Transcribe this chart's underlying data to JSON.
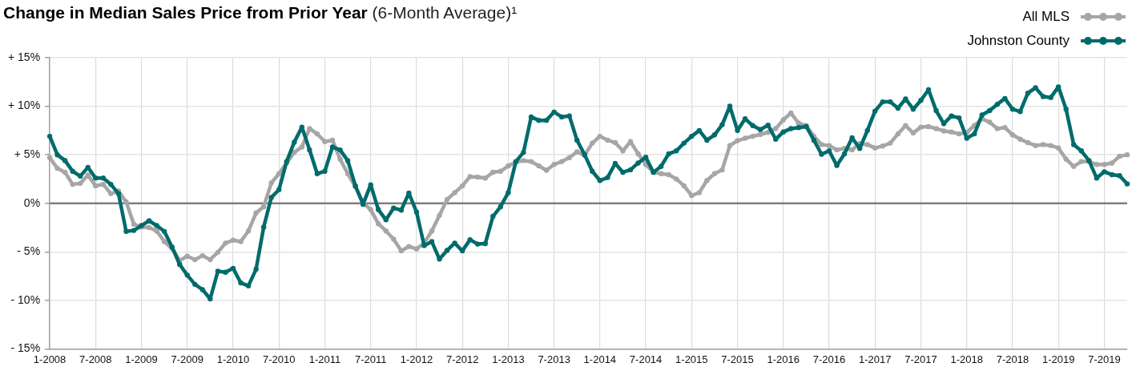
{
  "chart_data": {
    "type": "line",
    "title": "Change in Median Sales Price from Prior Year",
    "subtitle": "(6-Month Average)¹",
    "categories": [
      "1-2008",
      null,
      null,
      null,
      null,
      null,
      "7-2008",
      null,
      null,
      null,
      null,
      null,
      "1-2009",
      null,
      null,
      null,
      null,
      null,
      "7-2009",
      null,
      null,
      null,
      null,
      null,
      "1-2010",
      null,
      null,
      null,
      null,
      null,
      "7-2010",
      null,
      null,
      null,
      null,
      null,
      "1-2011",
      null,
      null,
      null,
      null,
      null,
      "7-2011",
      null,
      null,
      null,
      null,
      null,
      "1-2012",
      null,
      null,
      null,
      null,
      null,
      "7-2012",
      null,
      null,
      null,
      null,
      null,
      "1-2013",
      null,
      null,
      null,
      null,
      null,
      "7-2013",
      null,
      null,
      null,
      null,
      null,
      "1-2014",
      null,
      null,
      null,
      null,
      null,
      "7-2014",
      null,
      null,
      null,
      null,
      null,
      "1-2015",
      null,
      null,
      null,
      null,
      null,
      "7-2015",
      null,
      null,
      null,
      null,
      null,
      "1-2016",
      null,
      null,
      null,
      null,
      null,
      "7-2016",
      null,
      null,
      null,
      null,
      null,
      "1-2017",
      null,
      null,
      null,
      null,
      null,
      "7-2017",
      null,
      null,
      null,
      null,
      null,
      "1-2018",
      null,
      null,
      null,
      null,
      null,
      "7-2018",
      null,
      null,
      null,
      null,
      null,
      "1-2019",
      null,
      null,
      null,
      null,
      null,
      "7-2019",
      null,
      null,
      null
    ],
    "series": [
      {
        "name": "All MLS",
        "color": "#a6a6a6",
        "values": [
          4.7,
          3.6,
          3.2,
          1.95,
          2.05,
          2.9,
          1.8,
          1.95,
          1.0,
          1.25,
          0.15,
          -2.15,
          -2.45,
          -2.5,
          -2.85,
          -3.95,
          -4.65,
          -5.9,
          -5.45,
          -5.8,
          -5.4,
          -5.8,
          -5.05,
          -4.1,
          -3.8,
          -3.95,
          -2.85,
          -1.0,
          -0.35,
          2.1,
          3.05,
          4.15,
          5.25,
          5.8,
          7.7,
          7.15,
          6.35,
          6.5,
          4.55,
          3.05,
          1.7,
          0.05,
          -0.65,
          -2.1,
          -2.85,
          -3.7,
          -4.9,
          -4.45,
          -4.7,
          -4.1,
          -2.85,
          -1.25,
          0.4,
          1.1,
          1.8,
          2.75,
          2.7,
          2.6,
          3.2,
          3.3,
          3.85,
          4.25,
          4.4,
          4.3,
          3.85,
          3.4,
          4.0,
          4.3,
          4.7,
          5.3,
          4.95,
          6.2,
          6.9,
          6.5,
          6.25,
          5.4,
          6.35,
          5.1,
          4.0,
          3.2,
          3.05,
          2.95,
          2.5,
          1.8,
          0.8,
          1.1,
          2.35,
          3.05,
          3.45,
          5.95,
          6.45,
          6.7,
          6.9,
          7.1,
          7.3,
          7.7,
          8.6,
          9.3,
          8.25,
          8.0,
          6.9,
          6.05,
          5.95,
          5.5,
          5.65,
          5.5,
          6.15,
          6.05,
          5.7,
          5.9,
          6.2,
          7.15,
          8.0,
          7.25,
          7.85,
          7.9,
          7.7,
          7.45,
          7.35,
          7.15,
          7.3,
          8.0,
          8.7,
          8.35,
          7.7,
          7.8,
          7.05,
          6.6,
          6.25,
          5.95,
          6.05,
          5.95,
          5.7,
          4.55,
          3.8,
          4.3,
          4.3,
          4.0,
          4.0,
          4.15,
          4.85,
          5.0
        ]
      },
      {
        "name": "Johnston County",
        "color": "#006b6b",
        "values": [
          6.9,
          5.0,
          4.4,
          3.3,
          2.8,
          3.7,
          2.6,
          2.6,
          1.95,
          1.0,
          -2.9,
          -2.8,
          -2.3,
          -1.8,
          -2.3,
          -2.9,
          -4.5,
          -6.3,
          -7.4,
          -8.35,
          -8.9,
          -9.85,
          -7.0,
          -7.1,
          -6.7,
          -8.2,
          -8.5,
          -6.8,
          -2.45,
          0.6,
          1.4,
          4.3,
          6.3,
          7.85,
          5.5,
          3.05,
          3.3,
          5.8,
          5.5,
          4.4,
          1.8,
          -0.1,
          1.9,
          -0.65,
          -1.7,
          -0.5,
          -0.7,
          1.05,
          -0.9,
          -4.35,
          -3.95,
          -5.75,
          -4.85,
          -4.1,
          -4.9,
          -3.75,
          -4.2,
          -4.15,
          -1.35,
          -0.35,
          1.1,
          4.3,
          5.25,
          8.9,
          8.55,
          8.55,
          9.4,
          8.9,
          9.0,
          6.5,
          5.0,
          3.3,
          2.35,
          2.65,
          4.1,
          3.2,
          3.45,
          4.15,
          4.75,
          3.2,
          3.8,
          5.1,
          5.4,
          6.2,
          6.9,
          7.5,
          6.5,
          7.05,
          8.1,
          10.0,
          7.5,
          8.7,
          8.0,
          7.6,
          8.05,
          6.6,
          7.35,
          7.7,
          7.8,
          7.9,
          6.5,
          5.05,
          5.4,
          3.9,
          5.1,
          6.75,
          5.65,
          7.5,
          9.5,
          10.45,
          10.45,
          9.8,
          10.75,
          9.7,
          10.6,
          11.7,
          9.55,
          8.2,
          9.0,
          8.8,
          6.7,
          7.15,
          9.1,
          9.55,
          10.2,
          10.8,
          9.7,
          9.45,
          11.35,
          11.9,
          11.0,
          10.9,
          12.0,
          9.7,
          6.05,
          5.4,
          4.4,
          2.6,
          3.25,
          2.95,
          2.85,
          2.0
        ]
      }
    ],
    "ylim": [
      -15,
      15
    ],
    "yticks": [
      {
        "value": -15,
        "label": "- 15%"
      },
      {
        "value": -10,
        "label": "- 10%"
      },
      {
        "value": -5,
        "label": "- 5%"
      },
      {
        "value": 0,
        "label": "0%"
      },
      {
        "value": 5,
        "label": "+ 5%"
      },
      {
        "value": 10,
        "label": "+ 10%"
      },
      {
        "value": 15,
        "label": "+ 15%"
      }
    ],
    "ref_lines": [
      {
        "axis": "y",
        "value": 0,
        "color": "#7f7f7f"
      }
    ],
    "grid": true,
    "legend": "top right",
    "marker": "circle",
    "line_style": "solid"
  }
}
